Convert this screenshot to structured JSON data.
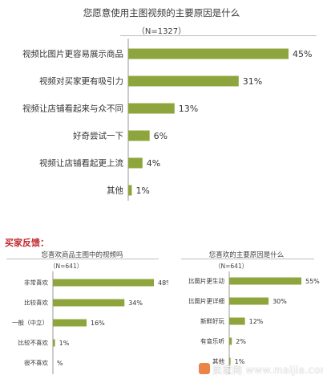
{
  "colors": {
    "bar": "#8ea53d",
    "axis": "#9a9a9a",
    "accent": "#c0262d"
  },
  "main_chart": {
    "title": "您愿意使用主图视频的主要原因是什么",
    "sample": "（N=1327）"
  },
  "buyer_section": {
    "label": "买家反馈："
  },
  "left_chart": {
    "title": "您喜欢商品主图中的视频吗",
    "sample": "（N=641）"
  },
  "right_chart": {
    "title": "您喜欢的主要原因是什么",
    "sample": "（N=641）"
  },
  "watermark": {
    "text": "卖家网 www.maijia.com"
  },
  "chart_data": [
    {
      "type": "bar",
      "orientation": "horizontal",
      "title": "您愿意使用主图视频的主要原因是什么",
      "subtitle": "（N=1327）",
      "categories": [
        "视频比图片更容易展示商品",
        "视频对买家更有吸引力",
        "视频让店铺看起来与众不同",
        "好奇尝试一下",
        "视频让店铺看起更上流",
        "其他"
      ],
      "values": [
        45,
        31,
        13,
        6,
        4,
        1
      ],
      "value_labels": [
        "45%",
        "31%",
        "13%",
        "6%",
        "4%",
        "1%"
      ],
      "unit": "%",
      "xlim": [
        0,
        45
      ]
    },
    {
      "type": "bar",
      "orientation": "horizontal",
      "title": "您喜欢商品主图中的视频吗",
      "subtitle": "（N=641）",
      "categories": [
        "非常喜欢",
        "比较喜欢",
        "一般（中立）",
        "比较不喜欢",
        "很不喜欢"
      ],
      "values": [
        48,
        34,
        16,
        1,
        0
      ],
      "value_labels": [
        "48%",
        "34%",
        "16%",
        "1%",
        "%"
      ],
      "unit": "%",
      "xlim": [
        0,
        48
      ]
    },
    {
      "type": "bar",
      "orientation": "horizontal",
      "title": "您喜欢的主要原因是什么",
      "subtitle": "（N=641）",
      "categories": [
        "比图片更生动",
        "比图片更详细",
        "新鲜好玩",
        "有音乐听",
        "其他"
      ],
      "values": [
        55,
        30,
        12,
        2,
        1
      ],
      "value_labels": [
        "55%",
        "30%",
        "12%",
        "2%",
        "1%"
      ],
      "unit": "%",
      "xlim": [
        0,
        55
      ]
    }
  ]
}
